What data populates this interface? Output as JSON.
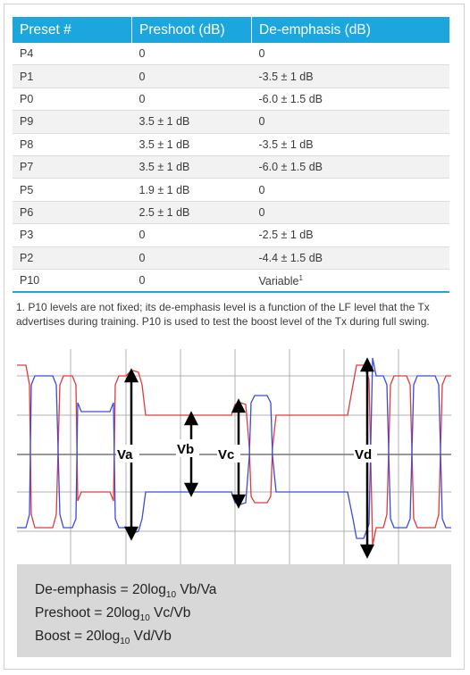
{
  "table": {
    "headers": [
      "Preset #",
      "Preshoot (dB)",
      "De-emphasis (dB)"
    ],
    "rows": [
      [
        "P4",
        "0",
        "0"
      ],
      [
        "P1",
        "0",
        "-3.5 ± 1 dB"
      ],
      [
        "P0",
        "0",
        "-6.0 ± 1.5 dB"
      ],
      [
        "P9",
        "3.5 ± 1 dB",
        "0"
      ],
      [
        "P8",
        "3.5 ± 1 dB",
        "-3.5 ± 1 dB"
      ],
      [
        "P7",
        "3.5 ± 1 dB",
        "-6.0 ± 1.5 dB"
      ],
      [
        "P5",
        "1.9 ± 1 dB",
        "0"
      ],
      [
        "P6",
        "2.5 ± 1 dB",
        "0"
      ],
      [
        "P3",
        "0",
        "-2.5 ± 1 dB"
      ],
      [
        "P2",
        "0",
        "-4.4 ± 1.5 dB"
      ],
      [
        "P10",
        "0",
        "Variable"
      ]
    ],
    "p10_marker": "1"
  },
  "footnote": "1. P10 levels are not fixed; its de-emphasis level is a function of the LF level that the Tx advertises during training. P10 is used to test the boost level of the Tx during full swing.",
  "diagram": {
    "labels": {
      "va": "Va",
      "vb": "Vb",
      "vc": "Vc",
      "vd": "Vd"
    },
    "colors": {
      "trace_red": "#e03a3a",
      "trace_blue": "#3a4ae0",
      "grid": "#b0b0b0",
      "arrow": "#000000"
    }
  },
  "formulas": [
    {
      "name": "De-emphasis",
      "prefix": "De-emphasis = 20log",
      "sub": "10",
      "ratio": " Vb/Va"
    },
    {
      "name": "Preshoot",
      "prefix": "Preshoot = 20log",
      "sub": "10",
      "ratio": " Vc/Vb"
    },
    {
      "name": "Boost",
      "prefix": "Boost = 20log",
      "sub": "10",
      "ratio": " Vd/Vb"
    }
  ],
  "style": {
    "header_blue": "#1ba6dd"
  }
}
